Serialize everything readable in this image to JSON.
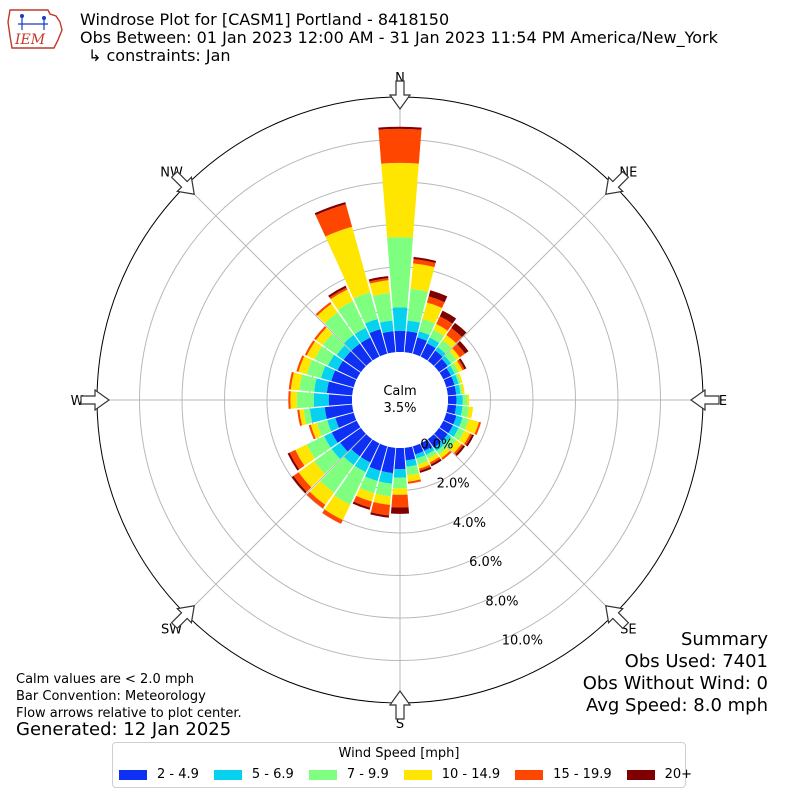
{
  "header": {
    "logo_text": "IEM",
    "title_line1": "Windrose Plot for [CASM1] Portland - 8418150",
    "title_line2": "Obs Between: 01 Jan 2023 12:00 AM - 31 Jan 2023 11:54 PM America/New_York",
    "title_line3": "↳ constraints: Jan"
  },
  "summary": {
    "title": "Summary",
    "obs_used": "Obs Used: 7401",
    "obs_without_wind": "Obs Without Wind: 0",
    "avg_speed": "Avg Speed: 8.0 mph"
  },
  "notes": {
    "calm_note": "Calm values are < 2.0 mph",
    "bar_convention": "Bar Convention: Meteorology",
    "flow_arrows": "Flow arrows relative to plot center.",
    "generated": "Generated: 12 Jan 2025"
  },
  "legend": {
    "title": "Wind Speed [mph]"
  },
  "chart_data": {
    "type": "windrose",
    "calm_label": "Calm",
    "calm_value": "3.5%",
    "directions": [
      "N",
      "NE",
      "E",
      "SE",
      "S",
      "SW",
      "W",
      "NW"
    ],
    "radial_ticks": [
      "0.0%",
      "2.0%",
      "4.0%",
      "6.0%",
      "8.0%",
      "10.0%"
    ],
    "radial_max": 12,
    "bins": [
      {
        "label": "2 - 4.9",
        "color": "#0e30f5"
      },
      {
        "label": "5 - 6.9",
        "color": "#06d2f0"
      },
      {
        "label": "7 - 9.9",
        "color": "#7fff7f"
      },
      {
        "label": "10 - 14.9",
        "color": "#ffe600"
      },
      {
        "label": "15 - 19.9",
        "color": "#ff4600"
      },
      {
        "label": "20+",
        "color": "#7f0000"
      }
    ],
    "sectors": [
      {
        "dir": 0,
        "values": [
          1.0,
          1.1,
          3.3,
          3.5,
          1.6,
          0.1
        ]
      },
      {
        "dir": 10,
        "values": [
          1.0,
          0.5,
          1.5,
          1.2,
          0.2,
          0.1
        ]
      },
      {
        "dir": 20,
        "values": [
          0.8,
          0.3,
          0.6,
          0.8,
          0.3,
          0.3
        ]
      },
      {
        "dir": 30,
        "values": [
          0.7,
          0.3,
          0.4,
          0.3,
          0.4,
          0.3
        ]
      },
      {
        "dir": 40,
        "values": [
          0.6,
          0.2,
          0.4,
          0.3,
          0.4,
          0.3
        ]
      },
      {
        "dir": 50,
        "values": [
          0.5,
          0.2,
          0.3,
          0.2,
          0.3,
          0.2
        ]
      },
      {
        "dir": 60,
        "values": [
          0.4,
          0.2,
          0.2,
          0.2,
          0.1,
          0.1
        ]
      },
      {
        "dir": 70,
        "values": [
          0.4,
          0.2,
          0.1,
          0.1,
          0.0,
          0.0
        ]
      },
      {
        "dir": 80,
        "values": [
          0.4,
          0.2,
          0.1,
          0.1,
          0.0,
          0.0
        ]
      },
      {
        "dir": 90,
        "values": [
          0.4,
          0.3,
          0.2,
          0.1,
          0.0,
          0.0
        ]
      },
      {
        "dir": 100,
        "values": [
          0.4,
          0.3,
          0.3,
          0.2,
          0.0,
          0.0
        ]
      },
      {
        "dir": 110,
        "values": [
          0.5,
          0.3,
          0.3,
          0.5,
          0.1,
          0.0
        ]
      },
      {
        "dir": 120,
        "values": [
          0.5,
          0.3,
          0.3,
          0.3,
          0.1,
          0.1
        ]
      },
      {
        "dir": 130,
        "values": [
          0.5,
          0.2,
          0.3,
          0.3,
          0.1,
          0.1
        ]
      },
      {
        "dir": 140,
        "values": [
          0.5,
          0.2,
          0.2,
          0.2,
          0.1,
          0.0
        ]
      },
      {
        "dir": 150,
        "values": [
          0.4,
          0.2,
          0.2,
          0.2,
          0.1,
          0.1
        ]
      },
      {
        "dir": 160,
        "values": [
          0.4,
          0.2,
          0.3,
          0.2,
          0.1,
          0.1
        ]
      },
      {
        "dir": 170,
        "values": [
          0.6,
          0.3,
          0.4,
          0.3,
          0.1,
          0.0
        ]
      },
      {
        "dir": 180,
        "values": [
          1.0,
          0.4,
          0.5,
          0.3,
          0.6,
          0.3
        ]
      },
      {
        "dir": 190,
        "values": [
          1.2,
          0.5,
          0.6,
          0.4,
          0.5,
          0.1
        ]
      },
      {
        "dir": 200,
        "values": [
          1.2,
          0.5,
          0.6,
          0.4,
          0.3,
          0.1
        ]
      },
      {
        "dir": 210,
        "values": [
          1.0,
          0.5,
          1.7,
          0.8,
          0.2,
          0.0
        ]
      },
      {
        "dir": 220,
        "values": [
          1.0,
          0.5,
          1.6,
          0.7,
          0.2,
          0.0
        ]
      },
      {
        "dir": 230,
        "values": [
          1.2,
          0.5,
          1.0,
          0.9,
          0.3,
          0.1
        ]
      },
      {
        "dir": 240,
        "values": [
          1.3,
          0.4,
          0.9,
          0.6,
          0.3,
          0.1
        ]
      },
      {
        "dir": 250,
        "values": [
          0.9,
          0.4,
          0.5,
          0.3,
          0.1,
          0.0
        ]
      },
      {
        "dir": 260,
        "values": [
          1.3,
          0.7,
          0.3,
          0.2,
          0.1,
          0.0
        ]
      },
      {
        "dir": 270,
        "values": [
          1.1,
          0.7,
          0.8,
          0.3,
          0.1,
          0.0
        ]
      },
      {
        "dir": 280,
        "values": [
          1.2,
          0.6,
          0.7,
          0.4,
          0.1,
          0.0
        ]
      },
      {
        "dir": 290,
        "values": [
          1.1,
          0.5,
          0.7,
          0.4,
          0.1,
          0.0
        ]
      },
      {
        "dir": 300,
        "values": [
          1.0,
          0.5,
          0.7,
          0.4,
          0.1,
          0.0
        ]
      },
      {
        "dir": 310,
        "values": [
          1.0,
          0.4,
          0.8,
          0.4,
          0.1,
          0.0
        ]
      },
      {
        "dir": 320,
        "values": [
          1.0,
          0.5,
          1.3,
          0.5,
          0.1,
          0.0
        ]
      },
      {
        "dir": 330,
        "values": [
          1.0,
          0.5,
          1.4,
          0.6,
          0.1,
          0.1
        ]
      },
      {
        "dir": 340,
        "values": [
          1.2,
          0.5,
          1.3,
          3.2,
          1.1,
          0.1
        ]
      },
      {
        "dir": 350,
        "values": [
          1.0,
          0.5,
          1.3,
          0.6,
          0.1,
          0.1
        ]
      }
    ]
  }
}
